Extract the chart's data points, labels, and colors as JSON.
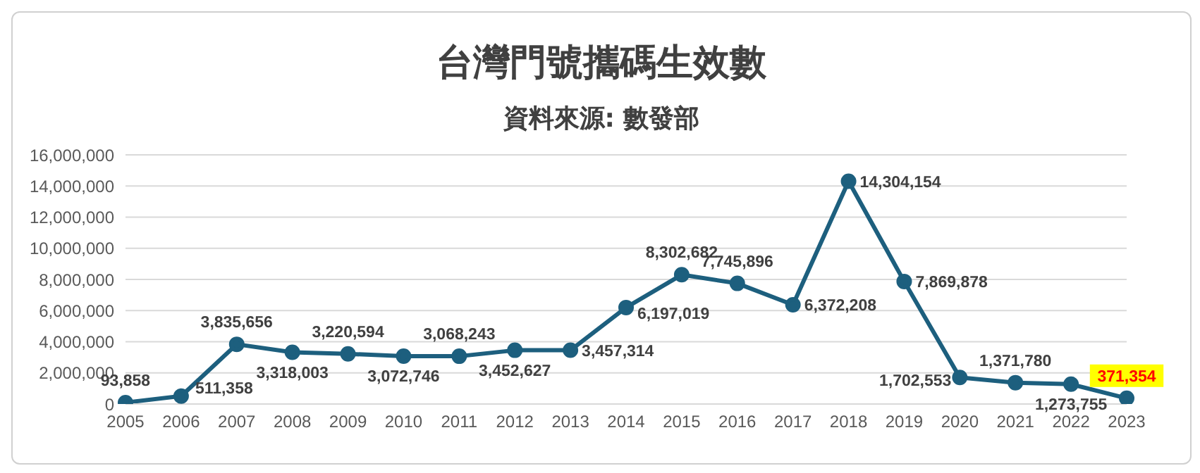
{
  "chart_data": {
    "type": "line",
    "title": "台灣門號攜碼生效數",
    "subtitle": "資料來源: 數發部",
    "categories": [
      "2005",
      "2006",
      "2007",
      "2008",
      "2009",
      "2010",
      "2011",
      "2012",
      "2013",
      "2014",
      "2015",
      "2016",
      "2017",
      "2018",
      "2019",
      "2020",
      "2021",
      "2022",
      "2023"
    ],
    "series": [
      {
        "color": "#1d5f7e",
        "values": [
          93858,
          511358,
          3835656,
          3318003,
          3220594,
          3072746,
          3068243,
          3452627,
          3457314,
          6197019,
          8302682,
          7745896,
          6372208,
          14304154,
          7869878,
          1702553,
          1371780,
          1273755,
          371354
        ],
        "value_labels": [
          "93,858",
          "511,358",
          "3,835,656",
          "3,318,003",
          "3,220,594",
          "3,072,746",
          "3,068,243",
          "3,452,627",
          "3,457,314",
          "6,197,019",
          "8,302,682",
          "7,745,896",
          "6,372,208",
          "14,304,154",
          "7,869,878",
          "1,702,553",
          "1,371,780",
          "1,273,755",
          "371,354"
        ]
      }
    ],
    "ylim": [
      0,
      16000000
    ],
    "yticks": [
      {
        "value": 0,
        "label": "0"
      },
      {
        "value": 2000000,
        "label": "2,000,000"
      },
      {
        "value": 4000000,
        "label": "4,000,000"
      },
      {
        "value": 6000000,
        "label": "6,000,000"
      },
      {
        "value": 8000000,
        "label": "8,000,000"
      },
      {
        "value": 10000000,
        "label": "10,000,000"
      },
      {
        "value": 12000000,
        "label": "12,000,000"
      },
      {
        "value": 14000000,
        "label": "14,000,000"
      },
      {
        "value": 16000000,
        "label": "16,000,000"
      }
    ],
    "grid": "y",
    "legend": false,
    "marker": "circle",
    "line_style": "solid"
  }
}
